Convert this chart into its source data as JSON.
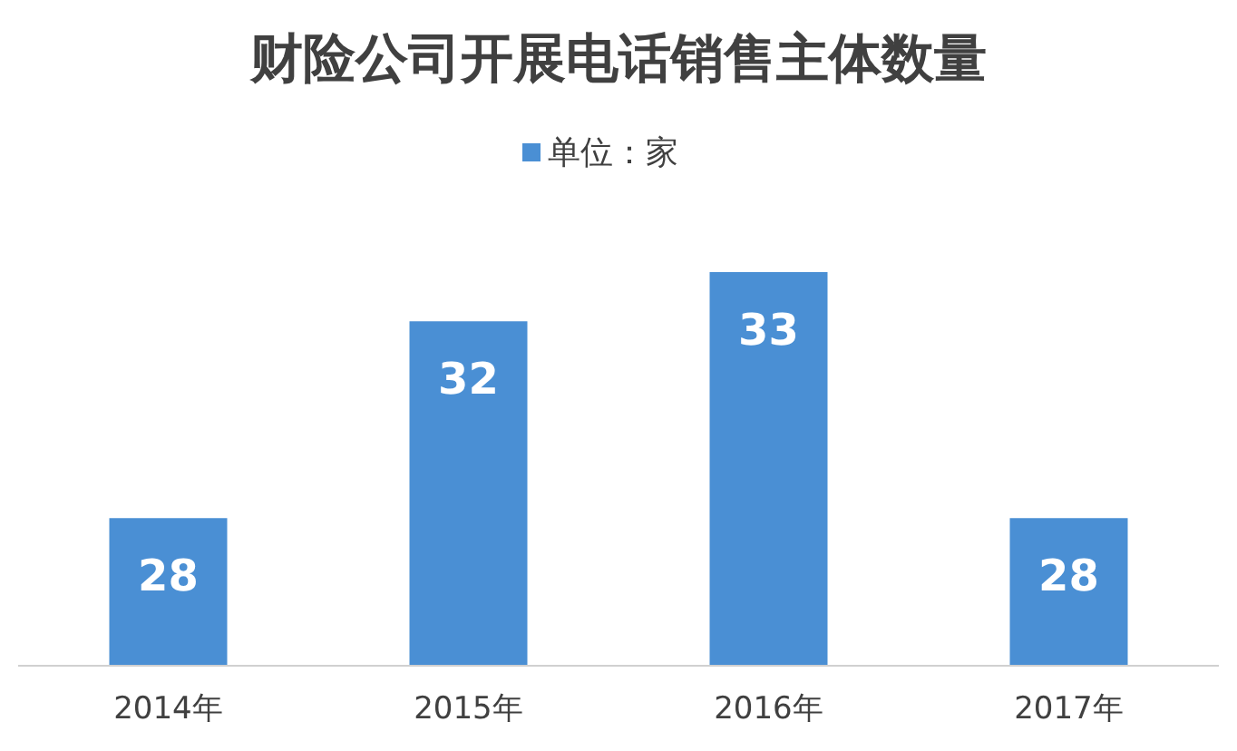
{
  "chart_data": {
    "type": "bar",
    "title": "财险公司开展电话销售主体数量",
    "categories": [
      "2014年",
      "2015年",
      "2016年",
      "2017年"
    ],
    "series": [
      {
        "name": "单位：家",
        "color": "#4a8fd4",
        "values": [
          28,
          32,
          33,
          28
        ]
      }
    ],
    "ylim": [
      25,
      33
    ],
    "tick_labels": "x",
    "data_labels": true,
    "legend": "top"
  }
}
